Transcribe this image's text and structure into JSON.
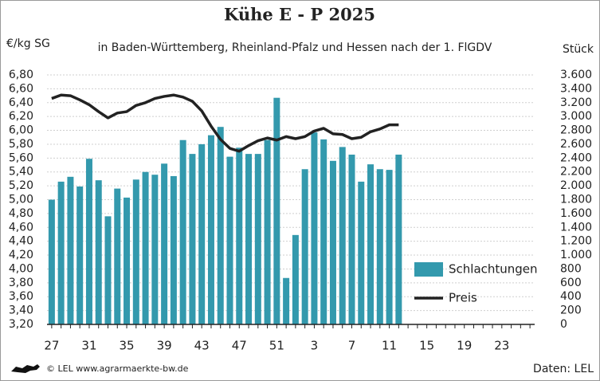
{
  "chart_data": {
    "type": "bar",
    "title": "Kühe E - P 2025",
    "subtitle": "in Baden-Württemberg, Rheinland-Pfalz und Hessen nach der 1. FlGDV",
    "ylabel": "€/kg SG",
    "y2label": "Stück",
    "source": "© LEL www.agrarmaerkte-bw.de",
    "credit": "Daten: LEL",
    "grid": true,
    "categories": [
      "27",
      null,
      null,
      null,
      "31",
      null,
      null,
      null,
      "35",
      null,
      null,
      null,
      "39",
      null,
      null,
      null,
      "43",
      null,
      null,
      null,
      "47",
      null,
      null,
      null,
      "51",
      null,
      null,
      null,
      "3",
      null,
      null,
      null,
      "7",
      null,
      null,
      null,
      "11",
      null,
      null,
      null,
      "15",
      null,
      null,
      null,
      "19",
      null,
      null,
      null,
      "23",
      null,
      null,
      null
    ],
    "ylim": [
      3.2,
      6.8
    ],
    "yticks": [
      {
        "value": 3.2,
        "label": "3,20"
      },
      {
        "value": 3.4,
        "label": "3,40"
      },
      {
        "value": 3.6,
        "label": "3,60"
      },
      {
        "value": 3.8,
        "label": "3,80"
      },
      {
        "value": 4.0,
        "label": "4,00"
      },
      {
        "value": 4.2,
        "label": "4,20"
      },
      {
        "value": 4.4,
        "label": "4,40"
      },
      {
        "value": 4.6,
        "label": "4,60"
      },
      {
        "value": 4.8,
        "label": "4,80"
      },
      {
        "value": 5.0,
        "label": "5,00"
      },
      {
        "value": 5.2,
        "label": "5,20"
      },
      {
        "value": 5.4,
        "label": "5,40"
      },
      {
        "value": 5.6,
        "label": "5,60"
      },
      {
        "value": 5.8,
        "label": "5,80"
      },
      {
        "value": 6.0,
        "label": "6,00"
      },
      {
        "value": 6.2,
        "label": "6,20"
      },
      {
        "value": 6.4,
        "label": "6,40"
      },
      {
        "value": 6.6,
        "label": "6,60"
      },
      {
        "value": 6.8,
        "label": "6,80"
      }
    ],
    "y2lim": [
      0,
      3600
    ],
    "y2ticks": [
      0,
      200,
      400,
      600,
      800,
      {
        "value": 1000,
        "label": "1.000"
      },
      {
        "value": 1200,
        "label": "1.200"
      },
      {
        "value": 1400,
        "label": "1.400"
      },
      {
        "value": 1600,
        "label": "1.600"
      },
      {
        "value": 1800,
        "label": "1.800"
      },
      {
        "value": 2000,
        "label": "2.000"
      },
      {
        "value": 2200,
        "label": "2.200"
      },
      {
        "value": 2400,
        "label": "2.400"
      },
      {
        "value": 2600,
        "label": "2.600"
      },
      {
        "value": 2800,
        "label": "2.800"
      },
      {
        "value": 3000,
        "label": "3.000"
      },
      {
        "value": 3200,
        "label": "3.200"
      },
      {
        "value": 3400,
        "label": "3.400"
      },
      {
        "value": 3600,
        "label": "3.600"
      }
    ],
    "series": [
      {
        "name": "Schlachtungen",
        "type": "bar",
        "axis": "y2",
        "color": "#3399ad",
        "values": [
          1800,
          2060,
          2130,
          1990,
          2390,
          2080,
          1560,
          1960,
          1830,
          2090,
          2200,
          2160,
          2320,
          2140,
          2660,
          2460,
          2600,
          2730,
          2850,
          2420,
          2550,
          2460,
          2460,
          2660,
          3270,
          670,
          1290,
          2240,
          2770,
          2670,
          2360,
          2560,
          2450,
          2060,
          2310,
          2240,
          2230,
          2450,
          null,
          null,
          null,
          null,
          null,
          null,
          null,
          null,
          null,
          null,
          null,
          null,
          null,
          null
        ]
      },
      {
        "name": "Preis",
        "type": "line",
        "color": "#222222",
        "values": [
          6.46,
          6.51,
          6.5,
          6.44,
          6.37,
          6.27,
          6.18,
          6.25,
          6.27,
          6.36,
          6.4,
          6.46,
          6.49,
          6.51,
          6.48,
          6.42,
          6.28,
          6.06,
          5.87,
          5.74,
          5.7,
          5.78,
          5.85,
          5.89,
          5.86,
          5.91,
          5.88,
          5.91,
          5.99,
          6.03,
          5.95,
          5.94,
          5.88,
          5.9,
          5.98,
          6.02,
          6.08,
          6.08,
          null,
          null,
          null,
          null,
          null,
          null,
          null,
          null,
          null,
          null,
          null,
          null,
          null,
          null
        ]
      }
    ]
  }
}
